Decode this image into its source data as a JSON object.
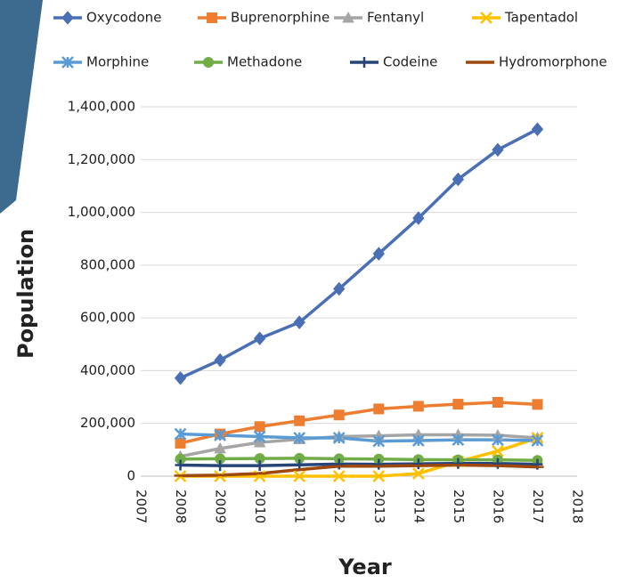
{
  "chart_data": {
    "type": "line",
    "x_label": "Year",
    "y_label": "Population",
    "x": [
      2008,
      2009,
      2010,
      2011,
      2012,
      2013,
      2014,
      2015,
      2016,
      2017
    ],
    "xlim": [
      2007,
      2018
    ],
    "xticks": [
      2007,
      2008,
      2009,
      2010,
      2011,
      2012,
      2013,
      2014,
      2015,
      2016,
      2017,
      2018
    ],
    "ylim": [
      0,
      1400000
    ],
    "yticks": [
      0,
      {
        "value": 200000,
        "label": "200,000"
      },
      {
        "value": 400000,
        "label": "400,000"
      },
      {
        "value": 600000,
        "label": "600,000"
      },
      {
        "value": 800000,
        "label": "800,000"
      },
      {
        "value": 1000000,
        "label": "1,000,000"
      },
      {
        "value": 1200000,
        "label": "1,200,000"
      },
      {
        "value": 1400000,
        "label": "1,400,000"
      }
    ],
    "grid": true,
    "series": [
      {
        "name": "Oxycodone",
        "color": "#4a6fb5",
        "marker": "diamond",
        "values": [
          372000,
          440000,
          522000,
          583000,
          710000,
          843000,
          978000,
          1125000,
          1237000,
          1315000
        ]
      },
      {
        "name": "Buprenorphine",
        "color": "#ed7d31",
        "marker": "square",
        "values": [
          125000,
          160000,
          188000,
          210000,
          232000,
          255000,
          265000,
          273000,
          280000,
          272000
        ]
      },
      {
        "name": "Fentanyl",
        "color": "#a5a5a5",
        "marker": "triangle",
        "values": [
          75000,
          105000,
          128000,
          140000,
          150000,
          153000,
          157000,
          157000,
          155000,
          145000
        ]
      },
      {
        "name": "Tapentadol",
        "color": "#ffc000",
        "marker": "x",
        "values": [
          0,
          0,
          0,
          0,
          0,
          0,
          10000,
          55000,
          95000,
          145000
        ]
      },
      {
        "name": "Morphine",
        "color": "#5b9bd5",
        "marker": "star",
        "values": [
          160000,
          155000,
          150000,
          145000,
          145000,
          133000,
          135000,
          138000,
          138000,
          135000
        ]
      },
      {
        "name": "Methadone",
        "color": "#70ad47",
        "marker": "circle",
        "values": [
          65000,
          66000,
          67000,
          68000,
          66000,
          65000,
          63000,
          62000,
          62000,
          60000
        ]
      },
      {
        "name": "Codeine",
        "color": "#264478",
        "marker": "plus",
        "values": [
          42000,
          40000,
          40000,
          43000,
          46000,
          45000,
          47000,
          48000,
          48000,
          45000
        ]
      },
      {
        "name": "Hydromorphone",
        "color": "#9e480e",
        "marker": "dash",
        "values": [
          2000,
          4000,
          10000,
          25000,
          38000,
          38000,
          40000,
          42000,
          40000,
          35000
        ]
      }
    ]
  }
}
